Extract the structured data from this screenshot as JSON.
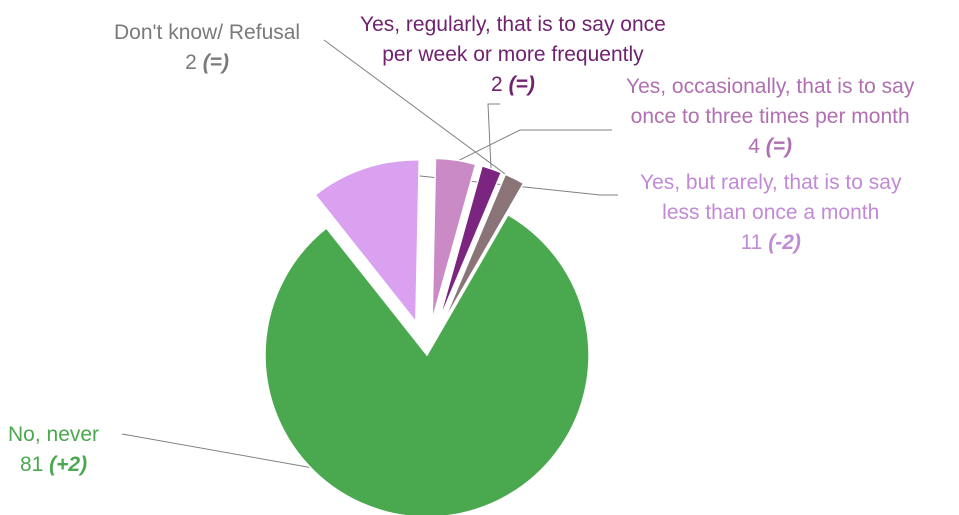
{
  "chart_data": {
    "type": "pie",
    "exploded": true,
    "slices": [
      {
        "label_lines": [
          "No, never"
        ],
        "value": 81,
        "change": "(+2)",
        "color": "#4aa84f"
      },
      {
        "label_lines": [
          "Yes, but rarely, that is to say",
          "less than once a month"
        ],
        "value": 11,
        "change": "(-2)",
        "color": "#d9a1ef"
      },
      {
        "label_lines": [
          "Yes, occasionally, that is to say",
          "once to three times per month"
        ],
        "value": 4,
        "change": "(=)",
        "color": "#c98ac5"
      },
      {
        "label_lines": [
          "Yes, regularly, that is to say once",
          "per week or more frequently"
        ],
        "value": 2,
        "change": "(=)",
        "color": "#7b2581"
      },
      {
        "label_lines": [
          "Don't know/ Refusal"
        ],
        "value": 2,
        "change": "(=)",
        "color": "#8a7478"
      }
    ],
    "label_colors": [
      "#4aa84f",
      "#c28ad6",
      "#b06fb0",
      "#70226f",
      "#7a7a7a"
    ],
    "leader_line_color": "#808080"
  }
}
